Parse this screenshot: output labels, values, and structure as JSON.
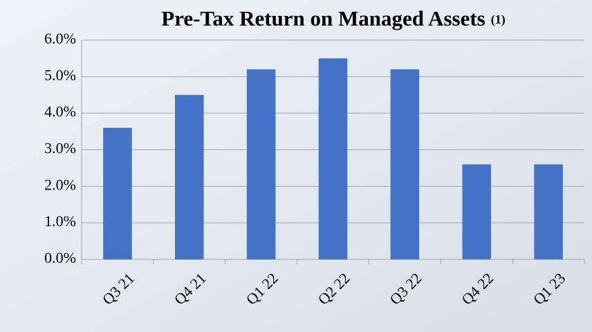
{
  "chart_data": {
    "type": "bar",
    "title": "Pre-Tax Return on Managed Assets",
    "title_note": "(1)",
    "categories": [
      "Q3 21",
      "Q4 21",
      "Q1 22",
      "Q2 22",
      "Q3 22",
      "Q4 22",
      "Q1 23"
    ],
    "values": [
      3.6,
      4.5,
      5.2,
      5.5,
      5.2,
      2.6,
      2.6
    ],
    "color": "#4472c4",
    "ylim": [
      0,
      6
    ],
    "yticks": [
      {
        "value": 0,
        "label": "0.0%"
      },
      {
        "value": 1,
        "label": "1.0%"
      },
      {
        "value": 2,
        "label": "2.0%"
      },
      {
        "value": 3,
        "label": "3.0%"
      },
      {
        "value": 4,
        "label": "4.0%"
      },
      {
        "value": 5,
        "label": "5.0%"
      },
      {
        "value": 6,
        "label": "6.0%"
      }
    ],
    "grid": true
  }
}
